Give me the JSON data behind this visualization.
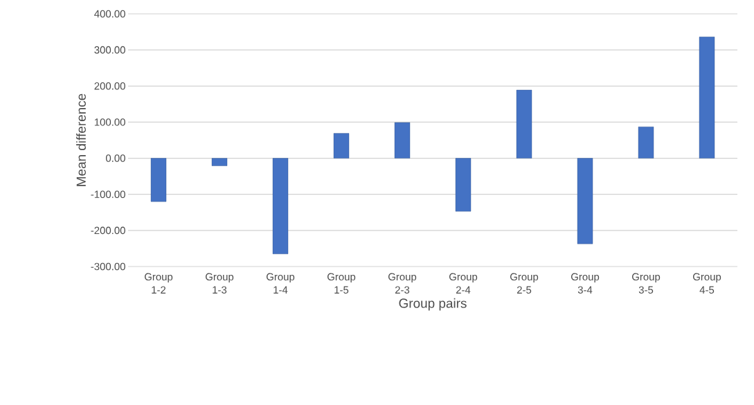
{
  "chart_data": {
    "type": "bar",
    "xlabel": "Group pairs",
    "ylabel": "Mean difference",
    "categories": [
      "Group 1-2",
      "Group 1-3",
      "Group 1-4",
      "Group 1-5",
      "Group 2-3",
      "Group 2-4",
      "Group 2-5",
      "Group 3-4",
      "Group 3-5",
      "Group 4-5"
    ],
    "values": [
      -120,
      -21,
      -265,
      69,
      99,
      -147,
      189,
      -237,
      87,
      336
    ],
    "color": "#4472c4",
    "ylim": [
      -300,
      400
    ],
    "yticks": [
      {
        "value": -300,
        "label": "-300.00"
      },
      {
        "value": -200,
        "label": "-200.00"
      },
      {
        "value": -100,
        "label": "-100.00"
      },
      {
        "value": 0,
        "label": "0.00"
      },
      {
        "value": 100,
        "label": "100.00"
      },
      {
        "value": 200,
        "label": "200.00"
      },
      {
        "value": 300,
        "label": "300.00"
      },
      {
        "value": 400,
        "label": "400.00"
      }
    ],
    "grid": "y"
  }
}
